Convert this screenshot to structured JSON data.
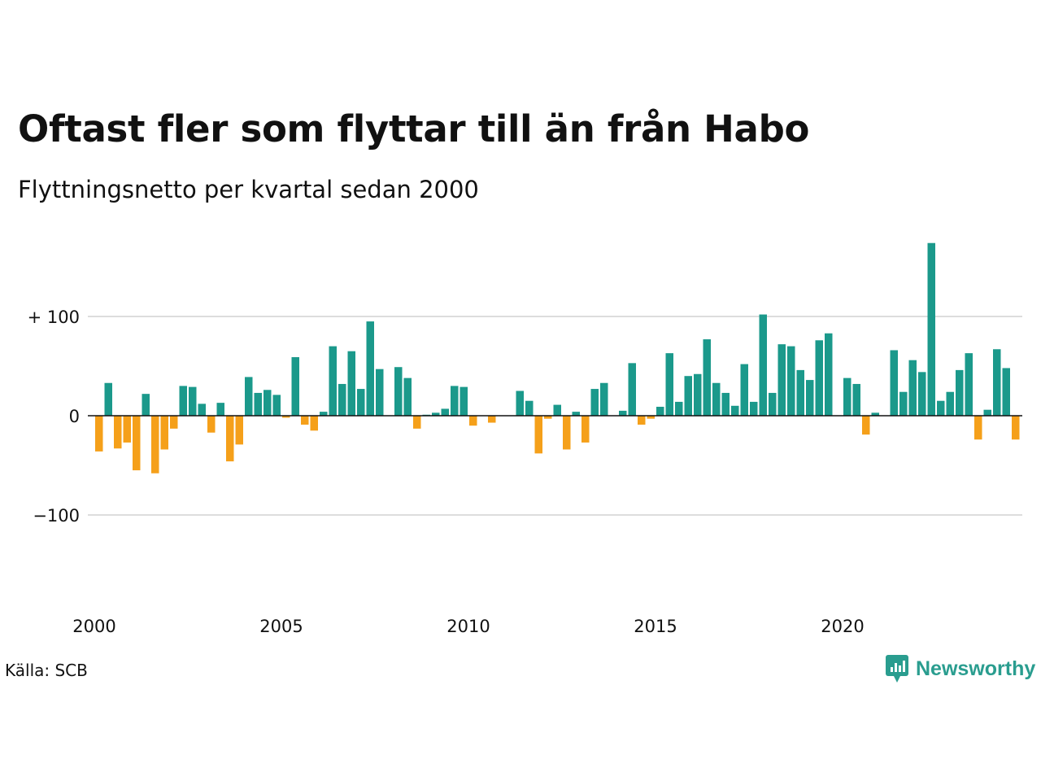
{
  "header": {
    "title": "Oftast fler som flyttar till än från Habo",
    "subtitle": "Flyttningsnetto per kvartal sedan 2000"
  },
  "footer": {
    "source": "Källa: SCB",
    "brand": "Newsworthy",
    "brand_icon": "newsworthy-chart-bubble-icon"
  },
  "colors": {
    "positive": "#1b998b",
    "negative": "#f5a01a",
    "grid": "#dddddd",
    "brand": "#2a9d8f"
  },
  "chart_data": {
    "type": "bar",
    "x_start_year": 2000,
    "quarters_per_year": 4,
    "y_ticks": [
      {
        "value": 100,
        "label": "+ 100"
      },
      {
        "value": 0,
        "label": "0"
      },
      {
        "value": -100,
        "label": "−100"
      }
    ],
    "x_ticks": [
      {
        "value": 2000,
        "label": "2000"
      },
      {
        "value": 2005,
        "label": "2005"
      },
      {
        "value": 2010,
        "label": "2010"
      },
      {
        "value": 2015,
        "label": "2015"
      },
      {
        "value": 2020,
        "label": "2020"
      }
    ],
    "ylim": [
      -200,
      200
    ],
    "grid": true,
    "values": [
      -36,
      33,
      -33,
      -27,
      -55,
      22,
      -58,
      -34,
      -13,
      30,
      29,
      12,
      -17,
      13,
      -46,
      -29,
      39,
      23,
      26,
      21,
      -2,
      59,
      -9,
      -15,
      4,
      70,
      32,
      65,
      27,
      95,
      47,
      0,
      49,
      38,
      -13,
      1,
      3,
      7,
      30,
      29,
      -10,
      0,
      -7,
      0,
      0,
      25,
      15,
      -38,
      -3,
      11,
      -34,
      4,
      -27,
      27,
      33,
      0,
      5,
      53,
      -9,
      -3,
      9,
      63,
      14,
      40,
      42,
      77,
      33,
      23,
      10,
      52,
      14,
      102,
      23,
      72,
      70,
      46,
      36,
      76,
      83,
      0,
      38,
      32,
      -19,
      3,
      0,
      66,
      24,
      56,
      44,
      174,
      15,
      24,
      46,
      63,
      -24,
      6,
      67,
      48,
      -24
    ]
  }
}
